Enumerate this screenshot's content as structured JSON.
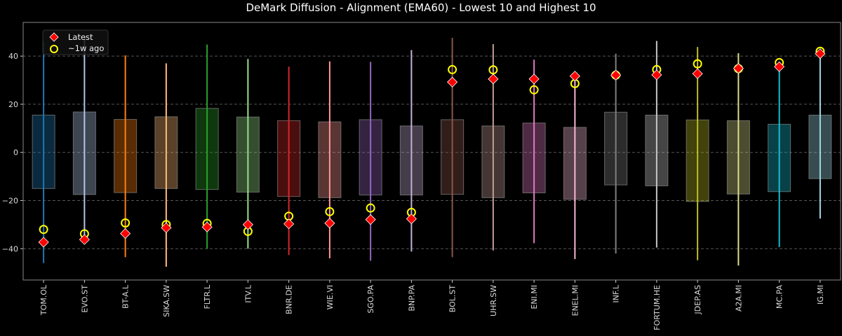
{
  "chart_data": {
    "type": "box-range-with-markers",
    "title": "DeMark Diffusion - Alignment (EMA60) - Lowest 10 and Highest 10",
    "xlabel": "",
    "ylabel": "",
    "ylim": [
      -53,
      54
    ],
    "yticks": [
      -40,
      -20,
      0,
      20,
      40
    ],
    "grid": true,
    "legend_placement": "top-left",
    "legend": [
      {
        "label": "Latest",
        "marker": "diamond",
        "color": "#ff0000"
      },
      {
        "label": "~1w ago",
        "marker": "circle",
        "color": "#ffff00"
      }
    ],
    "categories": [
      "TOM.OL",
      "EVO.ST",
      "BT-A.L",
      "SIKA.SW",
      "FLTR.L",
      "ITV.L",
      "BNR.DE",
      "WIE.VI",
      "SGO.PA",
      "BNP.PA",
      "BOL.ST",
      "UHR.SW",
      "ENI.MI",
      "ENEL.MI",
      "INF.L",
      "FORTUM.HE",
      "JDEP.AS",
      "A2A.MI",
      "MC.PA",
      "IG.MI"
    ],
    "colors": [
      "#1f77b4",
      "#aec7e8",
      "#ff7f0e",
      "#ffbb78",
      "#2ca02c",
      "#98df8a",
      "#d62728",
      "#ff9896",
      "#9467bd",
      "#c5b0d5",
      "#8c564b",
      "#c49c94",
      "#e377c2",
      "#f7b6d2",
      "#7f7f7f",
      "#c7c7c7",
      "#bcbd22",
      "#dbdb8d",
      "#17becf",
      "#9edae5"
    ],
    "range_high": [
      46,
      48,
      40.3,
      37,
      44.8,
      38.8,
      35.6,
      37.8,
      37.6,
      42.5,
      47.6,
      45,
      38.5,
      31.8,
      41,
      46.3,
      43.8,
      41.2,
      35.3,
      42.5
    ],
    "range_low": [
      -46,
      -36,
      -43.5,
      -47.5,
      -40,
      -40,
      -42.6,
      -44,
      -45,
      -41.2,
      -43.5,
      -40.7,
      -37.7,
      -44.3,
      -42,
      -39.5,
      -44.8,
      -47,
      -39.3,
      -27.5
    ],
    "box_high": [
      15.5,
      16.8,
      13.7,
      14.8,
      18.3,
      14.7,
      13.2,
      12.7,
      13.6,
      11,
      13.6,
      11,
      12.2,
      10.4,
      16.7,
      15.5,
      13.5,
      13.2,
      11.7,
      15.5
    ],
    "box_low": [
      -15,
      -17.5,
      -16.7,
      -15,
      -15.4,
      -16.5,
      -18.3,
      -18.8,
      -17.7,
      -17.7,
      -17.4,
      -18.8,
      -16.8,
      -19.5,
      -13.5,
      -13.9,
      -20.4,
      -17.3,
      -16.3,
      -10.9
    ],
    "latest": [
      -37.3,
      -36.2,
      -33.7,
      -31.3,
      -31,
      -30,
      -29.7,
      -29.4,
      -27.9,
      -27.6,
      29.2,
      30.5,
      30.5,
      31.7,
      32.1,
      32.2,
      32.7,
      34.9,
      35.6,
      41
    ],
    "week_ago": [
      -32,
      -33.8,
      -29.3,
      -30,
      -29.5,
      -32.8,
      -26.5,
      -24.6,
      -23.1,
      -24.9,
      34.4,
      34.3,
      26,
      28.6,
      32.1,
      34.4,
      36.8,
      34.8,
      37.3,
      42
    ]
  }
}
